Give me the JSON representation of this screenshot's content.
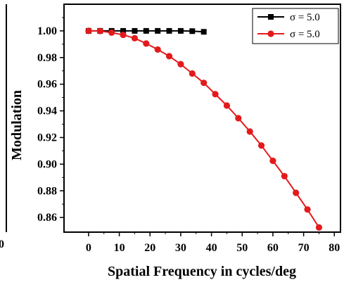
{
  "chart_data": {
    "type": "line",
    "title": "",
    "xlabel": "Spatial Frequency in cycles/deg",
    "ylabel": "Modulation",
    "xlim": [
      -8,
      82
    ],
    "ylim": [
      0.849,
      1.02
    ],
    "xticks": [
      0,
      10,
      20,
      30,
      40,
      50,
      60,
      70,
      80
    ],
    "yticks": [
      0.86,
      0.88,
      0.9,
      0.92,
      0.94,
      0.96,
      0.98,
      1.0
    ],
    "xtick_labels": [
      "0",
      "10",
      "20",
      "30",
      "40",
      "50",
      "60",
      "70",
      "80"
    ],
    "ytick_labels": [
      "0.86",
      "0.88",
      "0.90",
      "0.92",
      "0.94",
      "0.96",
      "0.98",
      "1.00"
    ],
    "left_panel_partial_tick_label": "0",
    "grid": false,
    "legend_position": "top-right",
    "series": [
      {
        "name": "σ = 5.0",
        "color": "#000000",
        "marker": "square",
        "x": [
          0,
          3.75,
          7.5,
          11.25,
          15,
          18.75,
          22.5,
          26.25,
          30,
          33.75,
          37.5
        ],
        "y": [
          1.0,
          1.0,
          1.0,
          1.0,
          1.0,
          1.0,
          1.0,
          1.0,
          1.0,
          0.9998,
          0.9993
        ]
      },
      {
        "name": "σ = 5.0",
        "color": "#e31a1c",
        "marker": "circle",
        "x": [
          0,
          3.75,
          7.5,
          11.25,
          15,
          18.75,
          22.5,
          26.25,
          30,
          33.75,
          37.5,
          41.25,
          45,
          48.75,
          52.5,
          56.25,
          60,
          63.75,
          67.5,
          71.25,
          75
        ],
        "y": [
          1.0,
          0.9999,
          0.9987,
          0.997,
          0.9945,
          0.9905,
          0.986,
          0.981,
          0.975,
          0.968,
          0.961,
          0.9525,
          0.944,
          0.9345,
          0.9245,
          0.914,
          0.9025,
          0.891,
          0.8785,
          0.866,
          0.8525
        ]
      }
    ]
  }
}
